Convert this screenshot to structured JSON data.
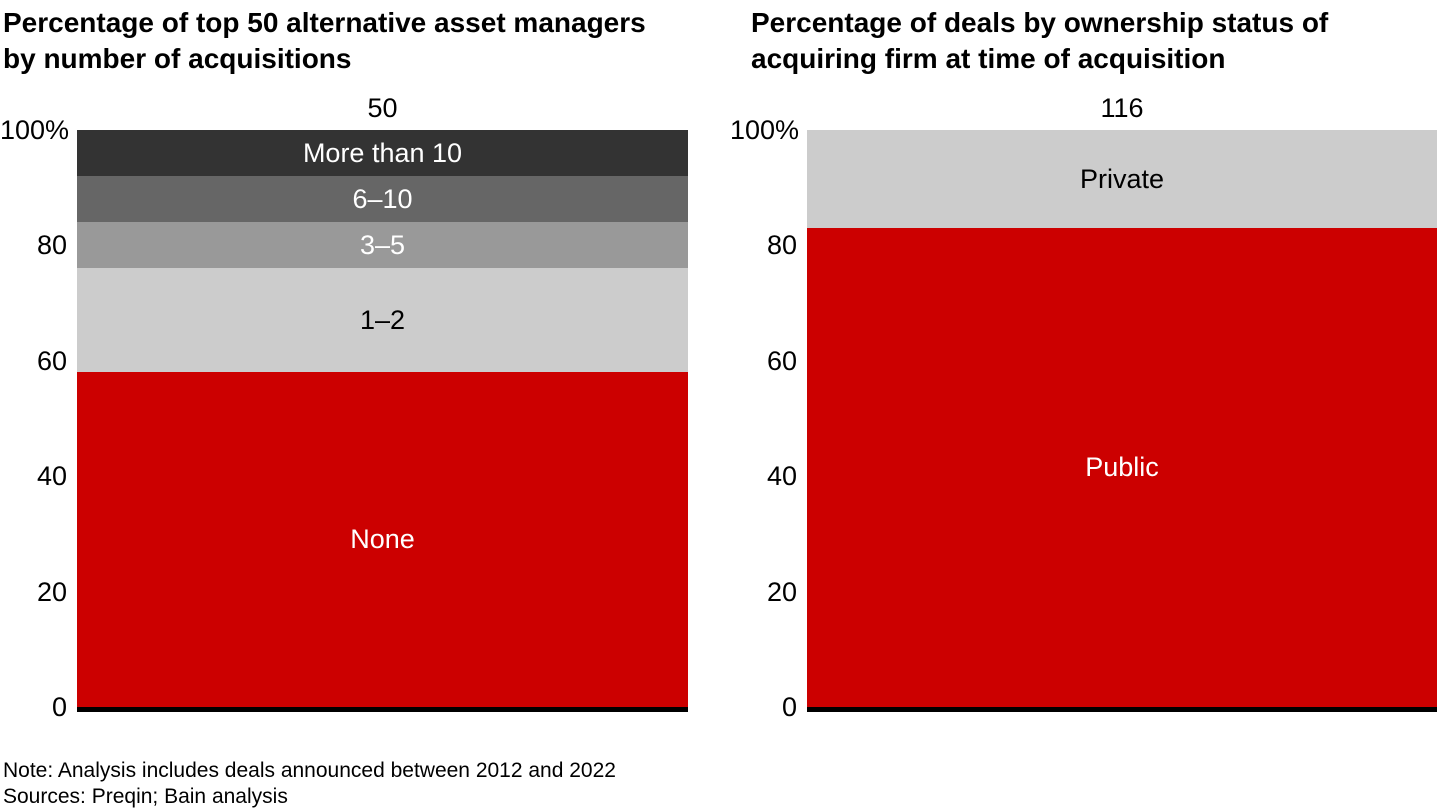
{
  "chart_data": [
    {
      "type": "bar",
      "stacked": true,
      "title": "Percentage of top 50 alternative asset managers\nby number of acquisitions",
      "total_label": "50",
      "categories": [
        "Top 50 alternative asset managers"
      ],
      "ylim": [
        0,
        100
      ],
      "unit": "%",
      "grid": false,
      "legend_position": "labels-inside-segments",
      "yticks": [
        {
          "value": 100,
          "label": "100%"
        },
        {
          "value": 80,
          "label": "80"
        },
        {
          "value": 60,
          "label": "60"
        },
        {
          "value": 40,
          "label": "40"
        },
        {
          "value": 20,
          "label": "20"
        },
        {
          "value": 0,
          "label": "0"
        }
      ],
      "segments": [
        {
          "label": "None",
          "value": 58,
          "color": "#cc0000",
          "label_color": "#ffffff"
        },
        {
          "label": "1–2",
          "value": 18,
          "color": "#cccccc",
          "label_color": "#000000"
        },
        {
          "label": "3–5",
          "value": 8,
          "color": "#999999",
          "label_color": "#ffffff"
        },
        {
          "label": "6–10",
          "value": 8,
          "color": "#666666",
          "label_color": "#ffffff"
        },
        {
          "label": "More than 10",
          "value": 8,
          "color": "#333333",
          "label_color": "#ffffff"
        }
      ]
    },
    {
      "type": "bar",
      "stacked": true,
      "title": "Percentage of deals by ownership status of\nacquiring firm at time of acquisition",
      "total_label": "116",
      "categories": [
        "Deals by ownership status of acquiring firm"
      ],
      "ylim": [
        0,
        100
      ],
      "unit": "%",
      "grid": false,
      "legend_position": "labels-inside-segments",
      "yticks": [
        {
          "value": 100,
          "label": "100%"
        },
        {
          "value": 80,
          "label": "80"
        },
        {
          "value": 60,
          "label": "60"
        },
        {
          "value": 40,
          "label": "40"
        },
        {
          "value": 20,
          "label": "20"
        },
        {
          "value": 0,
          "label": "0"
        }
      ],
      "segments": [
        {
          "label": "Public",
          "value": 83,
          "color": "#cc0000",
          "label_color": "#ffffff"
        },
        {
          "label": "Private",
          "value": 17,
          "color": "#cccccc",
          "label_color": "#000000"
        }
      ]
    }
  ],
  "colors": {
    "accent_red": "#cc0000",
    "gray_light": "#cccccc",
    "gray_mid": "#999999",
    "gray_dark": "#666666",
    "gray_darkest": "#333333",
    "axis_line": "#000000"
  },
  "footer": {
    "note": "Note: Analysis includes deals announced between 2012 and 2022",
    "sources": "Sources: Preqin; Bain analysis"
  }
}
